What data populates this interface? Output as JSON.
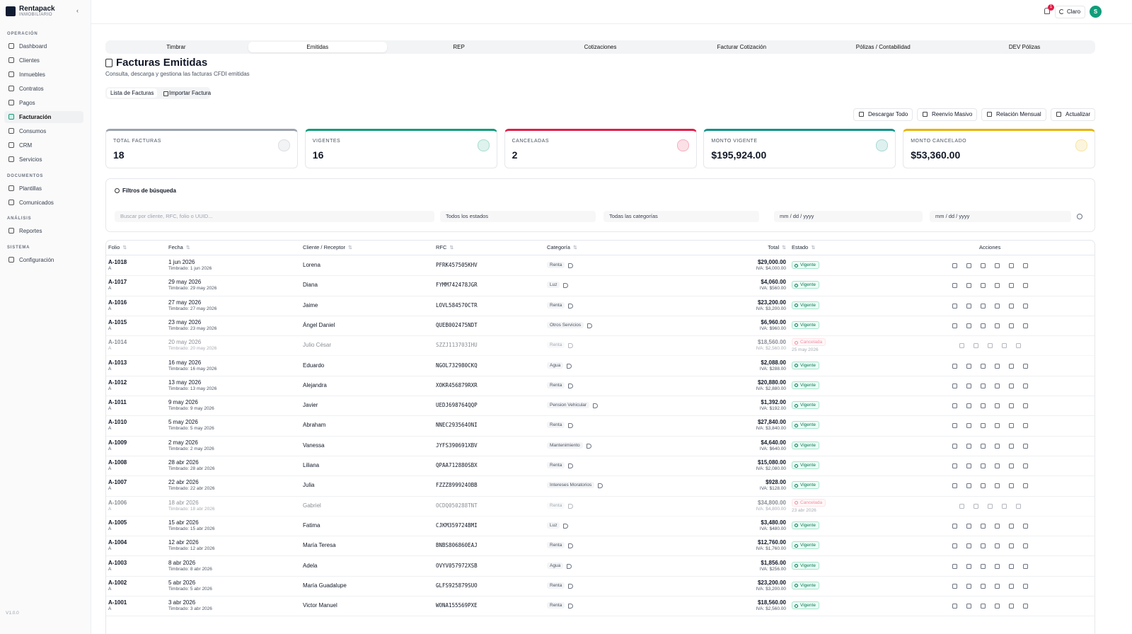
{
  "sidebar": {
    "brand": "Rentapack",
    "brand_sub": "INMOBILIARIO",
    "sections": [
      {
        "title": "OPERACIÓN",
        "items": [
          {
            "label": "Dashboard"
          },
          {
            "label": "Clientes"
          },
          {
            "label": "Inmuebles"
          },
          {
            "label": "Contratos"
          },
          {
            "label": "Pagos"
          },
          {
            "label": "Facturación",
            "active": true
          },
          {
            "label": "Consumos"
          },
          {
            "label": "CRM"
          },
          {
            "label": "Servicios"
          }
        ]
      },
      {
        "title": "DOCUMENTOS",
        "items": [
          {
            "label": "Plantillas"
          },
          {
            "label": "Comunicados"
          }
        ]
      },
      {
        "title": "ANÁLISIS",
        "items": [
          {
            "label": "Reportes"
          }
        ]
      },
      {
        "title": "SISTEMA",
        "items": [
          {
            "label": "Configuración"
          }
        ]
      }
    ],
    "version": "V1.0.0"
  },
  "topbar": {
    "notifications": 1,
    "theme": "Claro",
    "avatar": "S"
  },
  "tabs": [
    {
      "label": "Timbrar"
    },
    {
      "label": "Emitidas",
      "active": true
    },
    {
      "label": "REP"
    },
    {
      "label": "Cotizaciones"
    },
    {
      "label": "Facturar Cotización"
    },
    {
      "label": "Pólizas / Contabilidad"
    },
    {
      "label": "DEV Pólizas"
    }
  ],
  "header": {
    "title": "Facturas Emitidas",
    "subtitle": "Consulta, descarga y gestiona las facturas CFDI emitidas"
  },
  "subtabs": [
    {
      "label": "Lista de Facturas",
      "active": true
    },
    {
      "label": "Importar Factura"
    }
  ],
  "actions": [
    "Descargar Todo",
    "Reenvío Masivo",
    "Relación Mensual",
    "Actualizar"
  ],
  "stats": [
    {
      "label": "TOTAL FACTURAS",
      "value": 18,
      "color": "#9ca3af"
    },
    {
      "label": "VIGENTES",
      "value": 16,
      "color": "#0f9d7a"
    },
    {
      "label": "CANCELADAS",
      "value": 2,
      "color": "#e11d48"
    },
    {
      "label": "MONTO VIGENTE",
      "value": "$195,924.00",
      "color": "#0d9488"
    },
    {
      "label": "MONTO CANCELADO",
      "value": "$53,360.00",
      "color": "#eab308"
    }
  ],
  "filters": {
    "title": "Filtros de búsqueda",
    "search_placeholder": "Buscar por cliente, RFC, folio o UUID...",
    "status": "Todos los estados",
    "category": "Todas las categorías",
    "date_from": "mm / dd / yyyy",
    "date_to": "mm / dd / yyyy"
  },
  "table": {
    "columns": [
      "Folio",
      "Fecha",
      "Cliente / Receptor",
      "RFC",
      "Categoría",
      "Total",
      "Estado",
      "Acciones"
    ],
    "rows": [
      {
        "folio": "A-1018",
        "serie": "A",
        "date": "1 jun 2026",
        "stamped": "Timbrado: 1 jun 2026",
        "client": "Lorena",
        "rfc": "PFRK457505KHV",
        "category": "Renta",
        "total": "$29,000.00",
        "iva": "IVA: $4,000.00",
        "status": "Vigente"
      },
      {
        "folio": "A-1017",
        "serie": "A",
        "date": "29 may 2026",
        "stamped": "Timbrado: 29 may 2026",
        "client": "Diana",
        "rfc": "FYMM742478JGR",
        "category": "Luz",
        "total": "$4,060.00",
        "iva": "IVA: $560.00",
        "status": "Vigente"
      },
      {
        "folio": "A-1016",
        "serie": "A",
        "date": "27 may 2026",
        "stamped": "Timbrado: 27 may 2026",
        "client": "Jaime",
        "rfc": "LOVL584570CTR",
        "category": "Renta",
        "total": "$23,200.00",
        "iva": "IVA: $3,200.00",
        "status": "Vigente"
      },
      {
        "folio": "A-1015",
        "serie": "A",
        "date": "23 may 2026",
        "stamped": "Timbrado: 23 may 2026",
        "client": "Ángel Daniel",
        "rfc": "QUEB002475NDT",
        "category": "Otros Servicios",
        "total": "$6,960.00",
        "iva": "IVA: $960.00",
        "status": "Vigente"
      },
      {
        "folio": "A-1014",
        "serie": "A",
        "date": "20 may 2026",
        "stamped": "Timbrado: 20 may 2026",
        "client": "Julio César",
        "rfc": "SZZJ113703IHU",
        "category": "Renta",
        "total": "$18,560.00",
        "iva": "IVA: $2,560.00",
        "status": "Cancelada",
        "cancel_date": "25 may 2026"
      },
      {
        "folio": "A-1013",
        "serie": "A",
        "date": "16 may 2026",
        "stamped": "Timbrado: 16 may 2026",
        "client": "Eduardo",
        "rfc": "NGOL732980CKQ",
        "category": "Agua",
        "total": "$2,088.00",
        "iva": "IVA: $288.00",
        "status": "Vigente"
      },
      {
        "folio": "A-1012",
        "serie": "A",
        "date": "13 may 2026",
        "stamped": "Timbrado: 13 may 2026",
        "client": "Alejandra",
        "rfc": "XOKR456879RXR",
        "category": "Renta",
        "total": "$20,880.00",
        "iva": "IVA: $2,880.00",
        "status": "Vigente"
      },
      {
        "folio": "A-1011",
        "serie": "A",
        "date": "9 may 2026",
        "stamped": "Timbrado: 9 may 2026",
        "client": "Javier",
        "rfc": "UEDJ698764QQP",
        "category": "Pension Vehicular",
        "total": "$1,392.00",
        "iva": "IVA: $192.00",
        "status": "Vigente"
      },
      {
        "folio": "A-1010",
        "serie": "A",
        "date": "5 may 2026",
        "stamped": "Timbrado: 5 may 2026",
        "client": "Abraham",
        "rfc": "NNEC293564ONI",
        "category": "Renta",
        "total": "$27,840.00",
        "iva": "IVA: $3,840.00",
        "status": "Vigente"
      },
      {
        "folio": "A-1009",
        "serie": "A",
        "date": "2 may 2026",
        "stamped": "Timbrado: 2 may 2026",
        "client": "Vanessa",
        "rfc": "JYFS390691XBV",
        "category": "Mantenimiento",
        "total": "$4,640.00",
        "iva": "IVA: $640.00",
        "status": "Vigente"
      },
      {
        "folio": "A-1008",
        "serie": "A",
        "date": "28 abr 2026",
        "stamped": "Timbrado: 28 abr 2026",
        "client": "Liliana",
        "rfc": "QPAA712880SBX",
        "category": "Renta",
        "total": "$15,080.00",
        "iva": "IVA: $2,080.00",
        "status": "Vigente"
      },
      {
        "folio": "A-1007",
        "serie": "A",
        "date": "22 abr 2026",
        "stamped": "Timbrado: 22 abr 2026",
        "client": "Julia",
        "rfc": "FZZZ899924OBB",
        "category": "Intereses Moratorios",
        "total": "$928.00",
        "iva": "IVA: $128.00",
        "status": "Vigente"
      },
      {
        "folio": "A-1006",
        "serie": "A",
        "date": "18 abr 2026",
        "stamped": "Timbrado: 18 abr 2026",
        "client": "Gabriel",
        "rfc": "OCDQ050288TNT",
        "category": "Renta",
        "total": "$34,800.00",
        "iva": "IVA: $4,800.00",
        "status": "Cancelada",
        "cancel_date": "23 abr 2026"
      },
      {
        "folio": "A-1005",
        "serie": "A",
        "date": "15 abr 2026",
        "stamped": "Timbrado: 15 abr 2026",
        "client": "Fatima",
        "rfc": "CJKM359724BMI",
        "category": "Luz",
        "total": "$3,480.00",
        "iva": "IVA: $480.00",
        "status": "Vigente"
      },
      {
        "folio": "A-1004",
        "serie": "A",
        "date": "12 abr 2026",
        "stamped": "Timbrado: 12 abr 2026",
        "client": "María Teresa",
        "rfc": "BNBS806860EAJ",
        "category": "Renta",
        "total": "$12,760.00",
        "iva": "IVA: $1,760.00",
        "status": "Vigente"
      },
      {
        "folio": "A-1003",
        "serie": "A",
        "date": "8 abr 2026",
        "stamped": "Timbrado: 8 abr 2026",
        "client": "Adela",
        "rfc": "OVYV057972XSB",
        "category": "Agua",
        "total": "$1,856.00",
        "iva": "IVA: $256.00",
        "status": "Vigente"
      },
      {
        "folio": "A-1002",
        "serie": "A",
        "date": "5 abr 2026",
        "stamped": "Timbrado: 5 abr 2026",
        "client": "María Guadalupe",
        "rfc": "GLFS925879SUO",
        "category": "Renta",
        "total": "$23,200.00",
        "iva": "IVA: $3,200.00",
        "status": "Vigente"
      },
      {
        "folio": "A-1001",
        "serie": "A",
        "date": "3 abr 2026",
        "stamped": "Timbrado: 3 abr 2026",
        "client": "Victor Manuel",
        "rfc": "WONA155569PXE",
        "category": "Renta",
        "total": "$18,560.00",
        "iva": "IVA: $2,560.00",
        "status": "Vigente"
      }
    ]
  }
}
